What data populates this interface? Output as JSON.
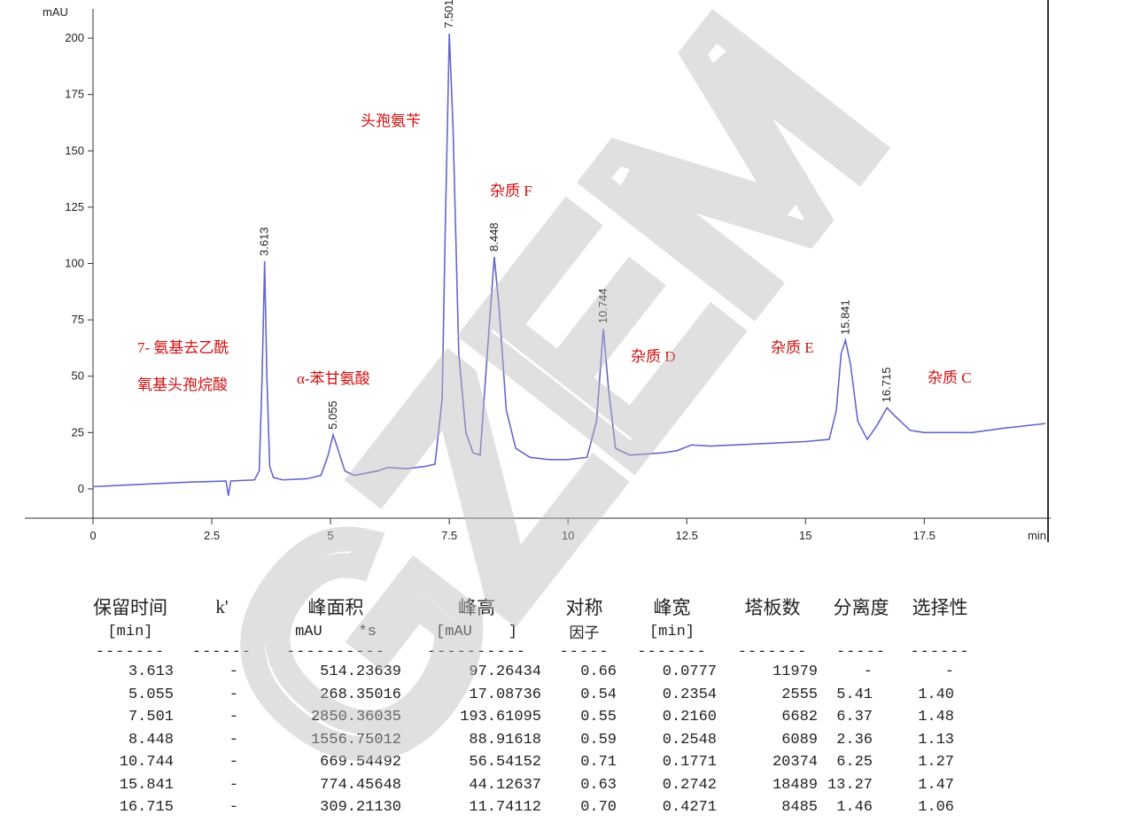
{
  "chart_data": {
    "type": "line",
    "ylabel": "mAU",
    "xlabel": "min",
    "xlim": [
      0,
      20.05
    ],
    "ylim": [
      -13,
      213
    ],
    "xticks": [
      0,
      2.5,
      5,
      7.5,
      10,
      12.5,
      15,
      17.5
    ],
    "yticks": [
      0,
      25,
      50,
      75,
      100,
      125,
      150,
      175,
      200
    ],
    "series": [
      {
        "color": "#6666cc",
        "x": [
          0,
          1,
          2,
          2.8,
          2.85,
          2.9,
          3.4,
          3.5,
          3.56,
          3.613,
          3.66,
          3.72,
          3.8,
          4.0,
          4.5,
          4.8,
          4.95,
          5.055,
          5.15,
          5.3,
          5.5,
          6,
          6.2,
          6.6,
          7.0,
          7.2,
          7.35,
          7.42,
          7.501,
          7.58,
          7.7,
          7.85,
          8.0,
          8.15,
          8.3,
          8.448,
          8.55,
          8.7,
          8.9,
          9.2,
          9.6,
          10.0,
          10.4,
          10.6,
          10.744,
          10.85,
          11.0,
          11.3,
          12,
          12.3,
          12.6,
          13,
          14,
          15,
          15.5,
          15.65,
          15.75,
          15.841,
          15.95,
          16.1,
          16.3,
          16.5,
          16.715,
          16.9,
          17.2,
          17.5,
          18.5,
          19.2,
          20.05
        ],
        "values": [
          1,
          2,
          3,
          3.5,
          -3,
          3.5,
          4,
          8,
          50,
          101,
          50,
          10,
          5,
          4,
          4.5,
          6,
          15,
          24,
          18,
          8,
          6,
          8,
          9.5,
          9,
          10,
          11,
          40,
          120,
          202,
          160,
          60,
          25,
          16,
          15,
          60,
          103,
          80,
          35,
          18,
          14,
          13,
          13,
          14,
          30,
          71,
          45,
          18,
          15,
          16,
          17,
          19.5,
          19,
          20,
          21,
          22,
          35,
          60,
          66,
          55,
          30,
          22,
          28,
          36,
          32,
          26,
          25,
          25,
          27,
          29
        ]
      }
    ],
    "peaks": [
      3.613,
      5.055,
      7.501,
      8.448,
      10.744,
      15.841,
      16.715
    ],
    "annotations": [
      "7- 氨基去乙酰",
      "氧基头孢烷酸",
      "α-苯甘氨酸",
      "头孢氨苄",
      "杂质 F",
      "杂质 D",
      "杂质 E",
      "杂质 C"
    ]
  },
  "watermark": "GZEM",
  "table": {
    "columns": [
      {
        "name": "保留时间",
        "unit": "[min]"
      },
      {
        "name": "k'"
      },
      {
        "name": "峰面积",
        "unit": "mAU    *s"
      },
      {
        "name": "峰高",
        "unit": "[mAU    ]"
      },
      {
        "name": "对称",
        "unit": "因子"
      },
      {
        "name": "峰宽",
        "unit": "[min]"
      },
      {
        "name": "塔板数"
      },
      {
        "name": "分离度"
      },
      {
        "name": "选择性"
      }
    ],
    "separator": [
      "-------",
      "------",
      "----------",
      "----------",
      "-----",
      "-------",
      "-------",
      "-----",
      "------"
    ],
    "rows": [
      [
        "3.613",
        "-",
        "514.23639",
        "97.26434",
        "0.66",
        "0.0777",
        "11979",
        "-",
        "-"
      ],
      [
        "5.055",
        "-",
        "268.35016",
        "17.08736",
        "0.54",
        "0.2354",
        "2555",
        "5.41",
        "1.40"
      ],
      [
        "7.501",
        "-",
        "2850.36035",
        "193.61095",
        "0.55",
        "0.2160",
        "6682",
        "6.37",
        "1.48"
      ],
      [
        "8.448",
        "-",
        "1556.75012",
        "88.91618",
        "0.59",
        "0.2548",
        "6089",
        "2.36",
        "1.13"
      ],
      [
        "10.744",
        "-",
        "669.54492",
        "56.54152",
        "0.71",
        "0.1771",
        "20374",
        "6.25",
        "1.27"
      ],
      [
        "15.841",
        "-",
        "774.45648",
        "44.12637",
        "0.63",
        "0.2742",
        "18489",
        "13.27",
        "1.47"
      ],
      [
        "16.715",
        "-",
        "309.21130",
        "11.74112",
        "0.70",
        "0.4271",
        "8485",
        "1.46",
        "1.06"
      ]
    ]
  }
}
